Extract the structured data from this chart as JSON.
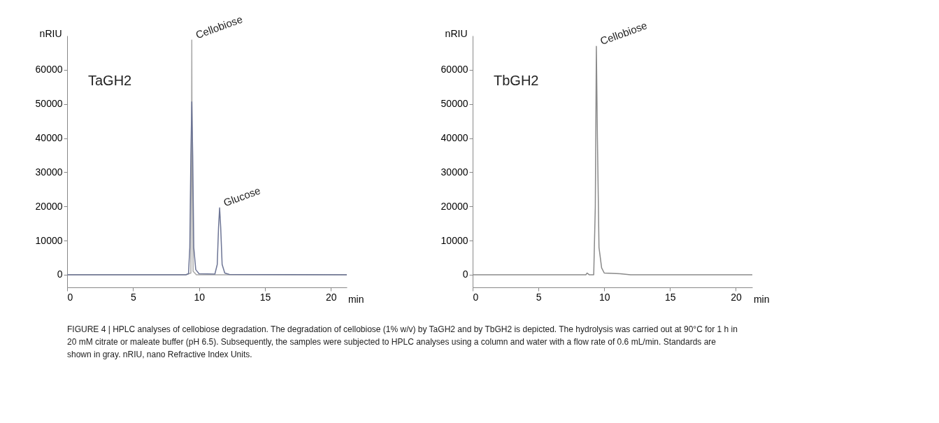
{
  "chart_data": [
    {
      "type": "line",
      "xlabel": "min",
      "ylabel": "nRIU",
      "xlim": [
        0,
        21.2
      ],
      "xticks": [
        0,
        5,
        10,
        15,
        20
      ],
      "ylim": [
        -3700,
        70000
      ],
      "yticks": [
        0,
        10000,
        20000,
        30000,
        40000,
        50000,
        60000
      ],
      "grid": false,
      "marker": "none",
      "line_style": "solid",
      "annotations": [
        "TaGH2",
        {
          "text": "Cellobiose",
          "x": 9.45,
          "y": 68700
        },
        {
          "text": "Glucose",
          "x": 11.56,
          "y": 19600
        }
      ],
      "series": [
        {
          "color": "#a8a8a8",
          "x": [
            0,
            9.0,
            9.38,
            9.43,
            9.45,
            9.47,
            9.55,
            9.8,
            21.2
          ],
          "values": [
            0,
            0,
            500,
            40000,
            68700,
            40000,
            1000,
            0,
            0
          ]
        },
        {
          "color": "#6d7595",
          "x": [
            0,
            9.0,
            9.2,
            9.3,
            9.38,
            9.45,
            9.52,
            9.6,
            9.75,
            10.0,
            11.2,
            11.38,
            11.48,
            11.56,
            11.64,
            11.75,
            11.95,
            12.3,
            21.2
          ],
          "values": [
            0,
            0,
            300,
            8000,
            35000,
            50600,
            35000,
            8000,
            1500,
            300,
            200,
            3000,
            14000,
            19600,
            14000,
            3000,
            500,
            100,
            0
          ]
        }
      ]
    },
    {
      "type": "line",
      "xlabel": "min",
      "ylabel": "nRIU",
      "xlim": [
        0,
        21.25
      ],
      "xticks": [
        0,
        5,
        10,
        15,
        20
      ],
      "ylim": [
        -3700,
        70000
      ],
      "yticks": [
        0,
        10000,
        20000,
        30000,
        40000,
        50000,
        60000
      ],
      "grid": false,
      "marker": "none",
      "line_style": "solid",
      "annotations": [
        "TbGH2",
        {
          "text": "Cellobiose",
          "x": 9.4,
          "y": 66900
        }
      ],
      "series": [
        {
          "color": "#8a8a8a",
          "x": [
            0,
            8.6,
            8.7,
            8.85,
            9.2,
            9.32,
            9.4,
            9.48,
            9.6,
            9.8,
            10.0,
            11.2,
            12.0,
            21.25
          ],
          "values": [
            0,
            0,
            500,
            0,
            0,
            20000,
            66900,
            40000,
            8000,
            2000,
            500,
            300,
            0,
            0
          ]
        }
      ]
    },
    {
      "type": "other",
      "annotations": [
        "FIGURE 4 | HPLC analyses of cellobiose degradation. The degradation of cellobiose (1% w/v) by TaGH2 and by TbGH2 is depicted. The hydrolysis was carried out at 90°C for 1 h in 20 mM citrate or maleate buffer (pH 6.5). Subsequently, the samples were subjected to HPLC analyses using a column and water with a flow rate of 0.6 mL/min. Standards are shown in gray. nRIU, nano Refractive Index Units."
      ]
    }
  ]
}
